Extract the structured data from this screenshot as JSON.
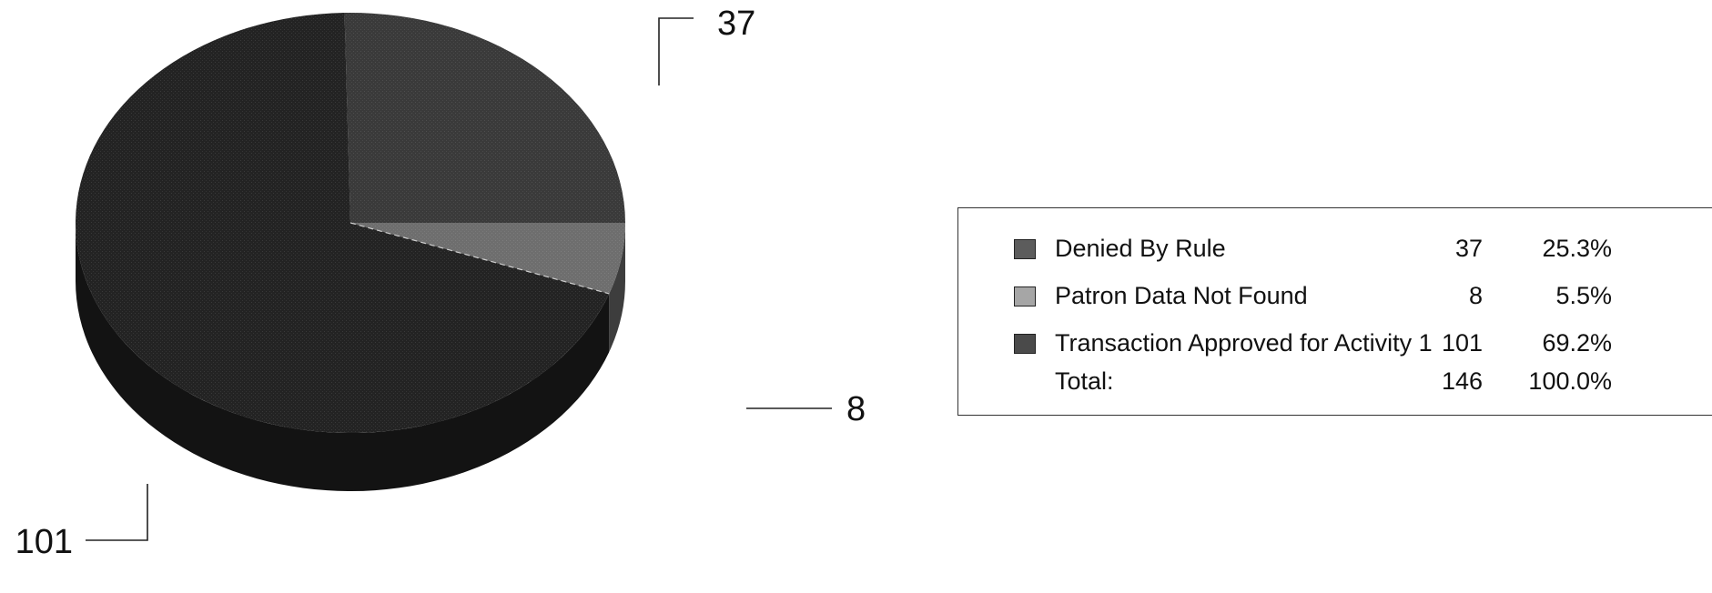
{
  "chart_data": {
    "type": "pie",
    "title": "",
    "slices": [
      {
        "label": "Denied By Rule",
        "value": 37,
        "percent": "25.3%",
        "callout": "37",
        "color": "#3a3a3a",
        "swatch": "#5c5c5c"
      },
      {
        "label": "Patron Data Not Found",
        "value": 8,
        "percent": "5.5%",
        "callout": "8",
        "color": "#6e6e6e",
        "swatch": "#a6a6a6"
      },
      {
        "label": "Transaction Approved for Activity 1",
        "value": 101,
        "percent": "69.2%",
        "callout": "101",
        "color": "#232323",
        "swatch": "#4a4a4a"
      }
    ],
    "legend": {
      "rows": [
        {
          "name": "Denied By Rule",
          "count": "37",
          "pct": "25.3%"
        },
        {
          "name": "Patron Data Not Found",
          "count": "8",
          "pct": "5.5%"
        },
        {
          "name": "Transaction Approved for Activity 1",
          "count": "101",
          "pct": "69.2%"
        }
      ],
      "total": {
        "name": "Total:",
        "count": "146",
        "pct": "100.0%"
      },
      "placement": "right"
    },
    "style": "3d-pie"
  }
}
